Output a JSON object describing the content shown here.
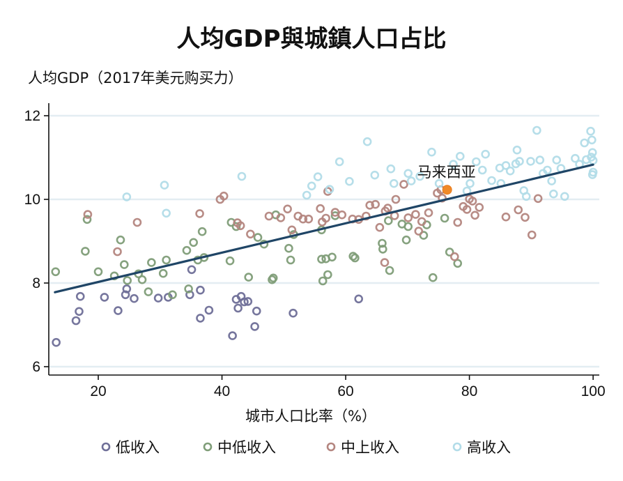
{
  "chart_data": {
    "type": "scatter",
    "title": "人均GDP與城鎮人口占比",
    "ylabel": "人均GDP（2017年美元购买力）",
    "xlabel": "城市人口比率（%）",
    "xlim": [
      12,
      101
    ],
    "ylim": [
      5.8,
      12.3
    ],
    "xticks": [
      20,
      40,
      60,
      80,
      100
    ],
    "yticks": [
      6,
      8,
      10,
      12
    ],
    "grid": true,
    "legend_position": "bottom",
    "colors": {
      "低收入": "#6f6f98",
      "中低收入": "#7f9d78",
      "中上收入": "#b48680",
      "高收入": "#b2dce8",
      "highlight": "#f08a28",
      "trend": "#1f4566"
    },
    "series": [
      {
        "name": "低收入",
        "points": [
          [
            13.2,
            6.58
          ],
          [
            16.4,
            7.1
          ],
          [
            16.9,
            7.32
          ],
          [
            17.1,
            7.68
          ],
          [
            21.0,
            7.66
          ],
          [
            23.2,
            7.34
          ],
          [
            24.4,
            7.72
          ],
          [
            24.6,
            7.86
          ],
          [
            25.8,
            7.63
          ],
          [
            29.7,
            7.64
          ],
          [
            31.3,
            7.66
          ],
          [
            35.1,
            8.32
          ],
          [
            36.5,
            7.83
          ],
          [
            36.5,
            7.16
          ],
          [
            37.9,
            7.35
          ],
          [
            41.7,
            6.74
          ],
          [
            42.3,
            7.61
          ],
          [
            42.6,
            7.4
          ],
          [
            43.1,
            7.68
          ],
          [
            43.6,
            7.55
          ],
          [
            45.3,
            6.96
          ],
          [
            45.6,
            7.33
          ],
          [
            51.5,
            7.28
          ],
          [
            62.1,
            7.62
          ],
          [
            44.2,
            7.56
          ],
          [
            34.8,
            7.72
          ]
        ]
      },
      {
        "name": "中低收入",
        "points": [
          [
            13.1,
            8.27
          ],
          [
            17.9,
            8.76
          ],
          [
            18.2,
            9.52
          ],
          [
            20.0,
            8.27
          ],
          [
            22.6,
            8.17
          ],
          [
            23.6,
            9.03
          ],
          [
            24.2,
            8.44
          ],
          [
            24.7,
            8.06
          ],
          [
            26.5,
            8.22
          ],
          [
            27.1,
            8.08
          ],
          [
            28.1,
            7.79
          ],
          [
            28.6,
            8.49
          ],
          [
            30.5,
            8.23
          ],
          [
            31.0,
            8.55
          ],
          [
            32.0,
            7.72
          ],
          [
            34.3,
            8.78
          ],
          [
            34.6,
            7.86
          ],
          [
            35.4,
            8.97
          ],
          [
            36.1,
            8.55
          ],
          [
            36.8,
            9.23
          ],
          [
            37.1,
            8.61
          ],
          [
            41.3,
            8.53
          ],
          [
            41.5,
            9.45
          ],
          [
            42.3,
            9.35
          ],
          [
            44.3,
            8.14
          ],
          [
            45.8,
            9.09
          ],
          [
            46.8,
            8.93
          ],
          [
            48.1,
            8.08
          ],
          [
            48.3,
            8.12
          ],
          [
            50.8,
            8.83
          ],
          [
            51.1,
            8.55
          ],
          [
            51.6,
            9.16
          ],
          [
            56.1,
            8.57
          ],
          [
            56.1,
            9.27
          ],
          [
            56.3,
            8.05
          ],
          [
            56.8,
            8.58
          ],
          [
            57.1,
            8.2
          ],
          [
            57.8,
            8.62
          ],
          [
            58.3,
            9.61
          ],
          [
            61.5,
            8.6
          ],
          [
            65.9,
            8.95
          ],
          [
            66.0,
            8.81
          ],
          [
            67.1,
            8.3
          ],
          [
            69.1,
            9.41
          ],
          [
            69.8,
            9.03
          ],
          [
            70.1,
            9.35
          ],
          [
            72.6,
            9.14
          ],
          [
            73.1,
            9.39
          ],
          [
            74.1,
            8.13
          ],
          [
            76.0,
            9.55
          ],
          [
            76.8,
            8.74
          ],
          [
            78.1,
            8.47
          ],
          [
            61.2,
            8.64
          ],
          [
            66.9,
            9.49
          ],
          [
            48.7,
            9.63
          ]
        ]
      },
      {
        "name": "中上收入",
        "points": [
          [
            18.3,
            9.64
          ],
          [
            23.1,
            8.75
          ],
          [
            26.3,
            9.45
          ],
          [
            36.4,
            9.66
          ],
          [
            39.7,
            10.0
          ],
          [
            40.3,
            10.08
          ],
          [
            42.5,
            9.44
          ],
          [
            43.0,
            9.37
          ],
          [
            47.6,
            9.6
          ],
          [
            49.5,
            9.56
          ],
          [
            50.6,
            9.77
          ],
          [
            51.3,
            9.27
          ],
          [
            52.3,
            9.6
          ],
          [
            53.1,
            9.53
          ],
          [
            55.9,
            9.78
          ],
          [
            56.2,
            9.46
          ],
          [
            56.8,
            9.55
          ],
          [
            57.1,
            10.19
          ],
          [
            58.3,
            9.69
          ],
          [
            59.4,
            9.63
          ],
          [
            61.1,
            9.53
          ],
          [
            62.1,
            9.52
          ],
          [
            63.3,
            9.6
          ],
          [
            63.9,
            9.86
          ],
          [
            64.8,
            9.88
          ],
          [
            65.5,
            9.33
          ],
          [
            66.3,
            8.49
          ],
          [
            66.4,
            9.72
          ],
          [
            66.8,
            9.79
          ],
          [
            67.9,
            9.61
          ],
          [
            68.1,
            10.0
          ],
          [
            69.4,
            10.36
          ],
          [
            70.1,
            9.56
          ],
          [
            71.3,
            9.64
          ],
          [
            71.8,
            9.24
          ],
          [
            72.3,
            9.47
          ],
          [
            73.4,
            9.68
          ],
          [
            74.8,
            10.15
          ],
          [
            75.4,
            10.23
          ],
          [
            75.6,
            10.03
          ],
          [
            77.6,
            8.63
          ],
          [
            78.1,
            9.45
          ],
          [
            79.0,
            9.83
          ],
          [
            79.6,
            9.76
          ],
          [
            80.0,
            10.01
          ],
          [
            80.5,
            9.96
          ],
          [
            80.9,
            9.62
          ],
          [
            81.6,
            9.81
          ],
          [
            85.9,
            9.58
          ],
          [
            87.9,
            9.75
          ],
          [
            89.0,
            9.57
          ],
          [
            90.1,
            9.15
          ],
          [
            91.1,
            10.02
          ],
          [
            54.0,
            9.53
          ],
          [
            44.6,
            9.17
          ]
        ]
      },
      {
        "name": "高收入",
        "points": [
          [
            24.6,
            10.06
          ],
          [
            30.7,
            10.34
          ],
          [
            31.0,
            9.67
          ],
          [
            43.2,
            10.55
          ],
          [
            53.7,
            10.1
          ],
          [
            54.5,
            10.32
          ],
          [
            55.5,
            10.54
          ],
          [
            57.4,
            10.24
          ],
          [
            59.0,
            10.9
          ],
          [
            60.6,
            10.43
          ],
          [
            63.5,
            11.38
          ],
          [
            64.7,
            10.58
          ],
          [
            67.3,
            10.73
          ],
          [
            67.8,
            10.38
          ],
          [
            70.1,
            10.62
          ],
          [
            70.6,
            10.44
          ],
          [
            72.0,
            10.55
          ],
          [
            73.9,
            11.13
          ],
          [
            75.1,
            10.38
          ],
          [
            77.4,
            10.84
          ],
          [
            78.5,
            11.03
          ],
          [
            79.6,
            10.2
          ],
          [
            80.1,
            10.38
          ],
          [
            81.1,
            10.9
          ],
          [
            82.1,
            10.7
          ],
          [
            82.6,
            11.08
          ],
          [
            83.6,
            10.45
          ],
          [
            84.9,
            10.75
          ],
          [
            85.1,
            10.38
          ],
          [
            85.9,
            10.81
          ],
          [
            86.6,
            10.68
          ],
          [
            87.5,
            10.85
          ],
          [
            88.1,
            10.91
          ],
          [
            88.8,
            10.21
          ],
          [
            89.2,
            10.07
          ],
          [
            89.9,
            10.91
          ],
          [
            90.9,
            11.65
          ],
          [
            91.4,
            10.94
          ],
          [
            91.9,
            10.62
          ],
          [
            92.6,
            10.7
          ],
          [
            93.3,
            10.44
          ],
          [
            93.6,
            10.13
          ],
          [
            94.1,
            10.94
          ],
          [
            94.8,
            10.74
          ],
          [
            95.4,
            10.07
          ],
          [
            97.1,
            10.98
          ],
          [
            97.8,
            10.84
          ],
          [
            98.6,
            11.35
          ],
          [
            98.9,
            10.95
          ],
          [
            99.6,
            11.63
          ],
          [
            99.8,
            11.42
          ],
          [
            99.9,
            11.12
          ],
          [
            100.0,
            10.93
          ],
          [
            100.0,
            10.65
          ],
          [
            99.9,
            10.59
          ],
          [
            99.7,
            11.01
          ],
          [
            87.7,
            11.18
          ]
        ]
      },
      {
        "name": "马来西亚",
        "highlight": true,
        "points": [
          [
            76.4,
            10.23
          ]
        ]
      }
    ],
    "trendline": {
      "x": [
        13,
        100
      ],
      "y": [
        7.78,
        10.83
      ]
    },
    "annotations": [
      {
        "text": "马来西亚",
        "x": 76.4,
        "y": 10.23,
        "position": "above"
      }
    ],
    "legend": [
      "低收入",
      "中低收入",
      "中上收入",
      "高收入"
    ]
  }
}
